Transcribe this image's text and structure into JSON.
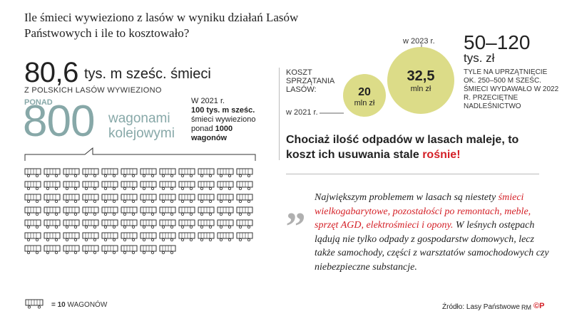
{
  "title": "Ile śmieci wywieziono z lasów w wyniku działań Lasów Państwowych i ile to kosztowało?",
  "left": {
    "amount": "80,6",
    "amount_unit": "tys. m sześc. śmieci",
    "from_label": "Z POLSKICH LASÓW WYWIEZIONO",
    "ponad": "PONAD",
    "wagons_number": "800",
    "wagons_word": "wagonami kolejowymi",
    "note_line1": "W 2021 r.",
    "note_bold": "100 tys. m sześc.",
    "note_line3": "śmieci wywieziono",
    "note_line4": "ponad",
    "note_bold2": "1000",
    "note_bold3": "wagonów",
    "legend_value": "= 10",
    "legend_unit": "WAGONÓW",
    "wagon_rows": 10,
    "wagons_per_row": 12,
    "total_wagon_icons": 80
  },
  "costs": {
    "label": "KOSZT SPRZĄTANIA LASÓW:",
    "year_2021": "w 2021 r.",
    "year_2023": "w 2023 r.",
    "value_2021": "20",
    "value_2023": "32,5",
    "unit": "mln zł",
    "bubble_color": "#dcdc88"
  },
  "range": {
    "value": "50–120",
    "unit": "tys. zł",
    "description": "TYLE NA UPRZĄTNIĘCIE OK. 250–500 M SZEŚC. ŚMIECI WYDAWAŁO W 2022 R. PRZECIĘTNE NADLEŚNICTWO"
  },
  "headline": {
    "text": "Chociaż ilość odpadów w lasach maleje, to koszt ich usuwania stale",
    "highlight": "rośnie!"
  },
  "quote": {
    "part1": "Największym problemem w lasach są niestety",
    "highlight": "śmieci wielkogabarytowe, pozostałości po remontach, meble, sprzęt AGD, elektrośmieci i opony.",
    "part2": "W leśnych ostępach lądują nie tylko odpady z gospodarstw domowych, lecz także samochody, części z warsztatów samochodowych czy niebezpieczne substancje."
  },
  "footer": {
    "source": "Źródło: Lasy Państwowe",
    "credit": "RM",
    "logo": "©P"
  },
  "colors": {
    "accent_red": "#d42027",
    "teal_gray": "#87a8a8",
    "bubble": "#dcdc88"
  }
}
